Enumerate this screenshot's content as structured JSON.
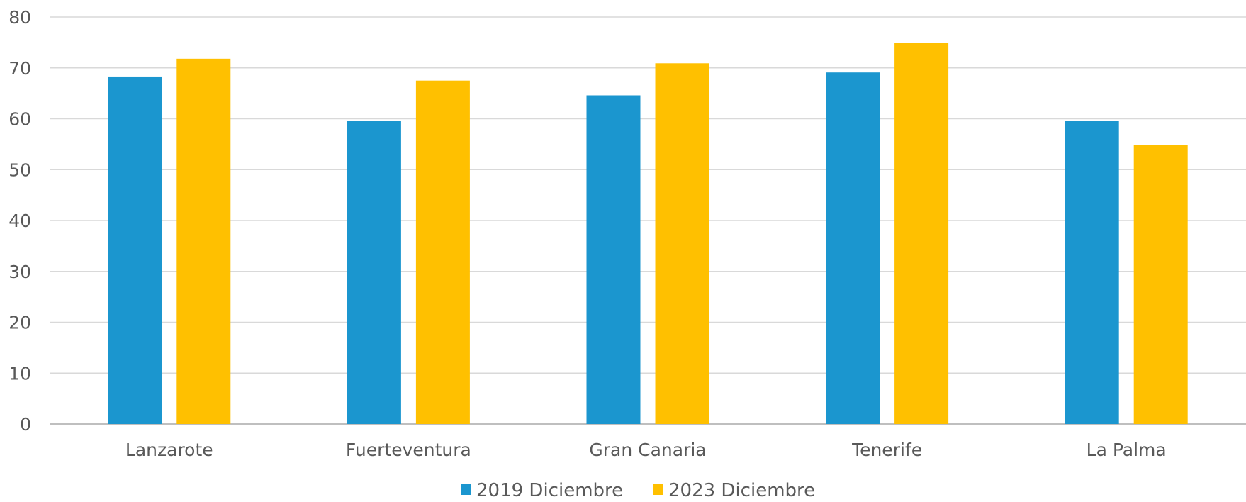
{
  "chart_data": {
    "type": "bar",
    "title": "",
    "xlabel": "",
    "ylabel": "",
    "categories": [
      "Lanzarote",
      "Fuerteventura",
      "Gran Canaria",
      "Tenerife",
      "La Palma"
    ],
    "series": [
      {
        "name": "2019 Diciembre",
        "color": "#1b96cf",
        "values": [
          68.3,
          59.6,
          64.6,
          69.1,
          59.6
        ]
      },
      {
        "name": "2023 Diciembre",
        "color": "#ffc000",
        "values": [
          71.8,
          67.5,
          70.9,
          74.9,
          54.8
        ]
      }
    ],
    "ylim": [
      0,
      80
    ],
    "yticks": [
      0,
      10,
      20,
      30,
      40,
      50,
      60,
      70,
      80
    ],
    "grid": true,
    "legend_position": "bottom"
  }
}
